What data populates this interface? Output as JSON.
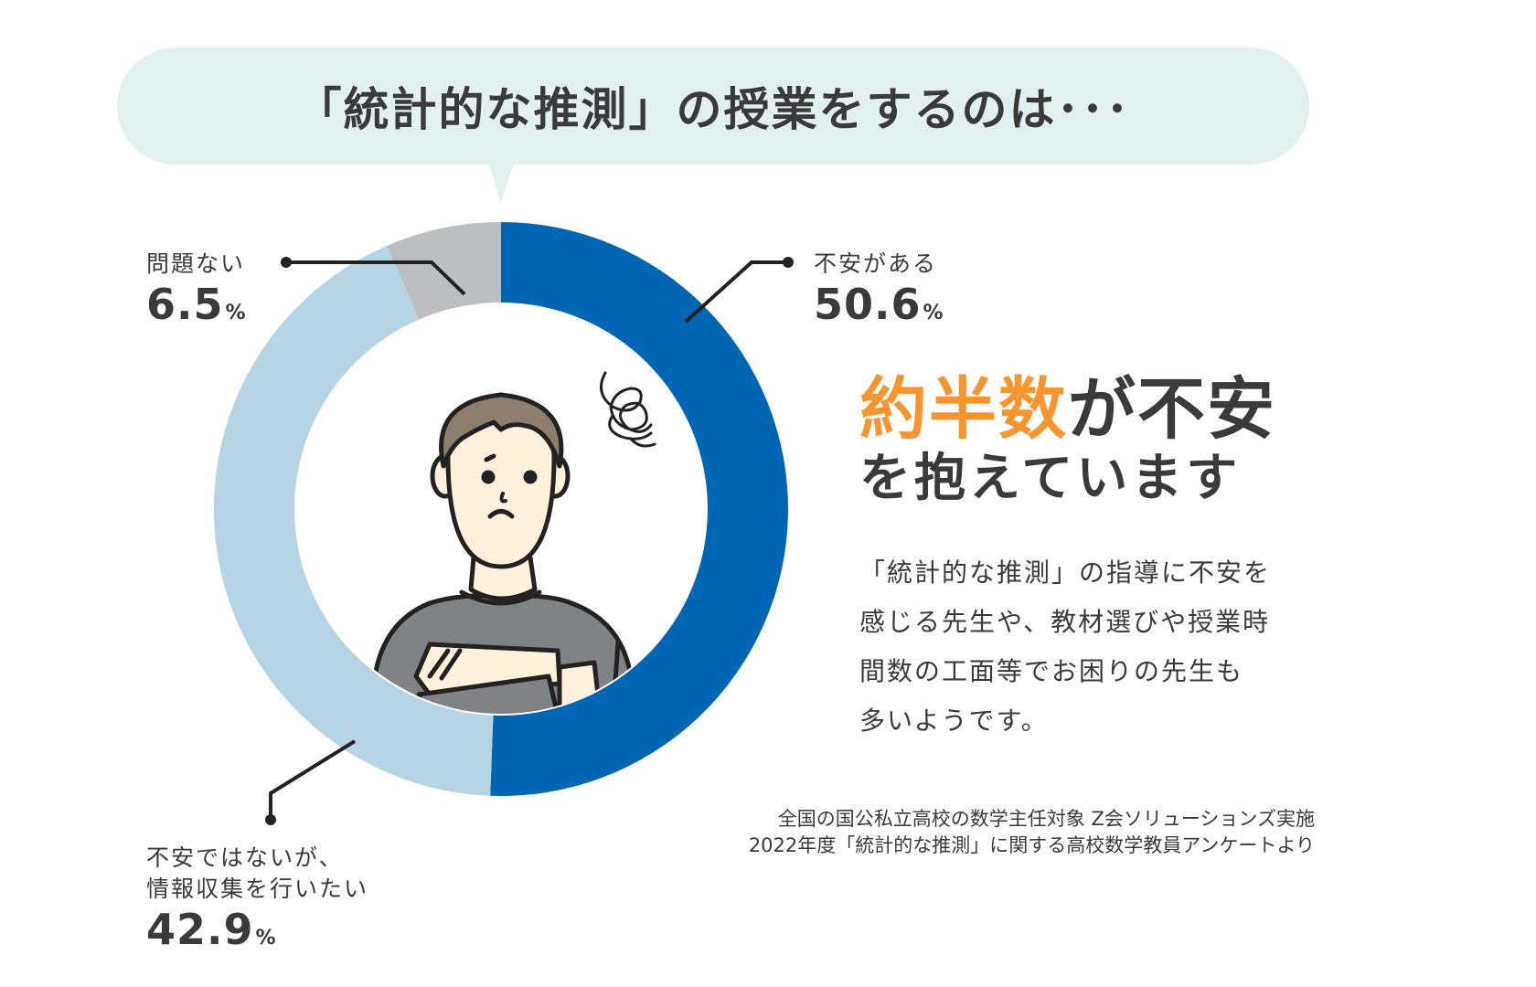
{
  "bubble": {
    "title": "「統計的な推測」の授業をするのは･･･",
    "background_color": "#e2f1f0"
  },
  "chart_data": {
    "type": "pie",
    "variant": "donut",
    "title": "「統計的な推測」の授業をするのは･･･",
    "categories": [
      "不安がある",
      "不安ではないが、情報収集を行いたい",
      "問題ない"
    ],
    "values": [
      50.6,
      42.9,
      6.5
    ],
    "unit": "%",
    "colors": [
      "#0066b3",
      "#b5d4e4",
      "#bdbec0"
    ],
    "start_angle": "top (12 o'clock), clockwise",
    "legend": "inline callout labels"
  },
  "segments": [
    {
      "label": "不安がある",
      "value": "50.6",
      "unit": "%"
    },
    {
      "label_line1": "不安ではないが、",
      "label_line2": "情報収集を行いたい",
      "value": "42.9",
      "unit": "%"
    },
    {
      "label": "問題ない",
      "value": "6.5",
      "unit": "%"
    }
  ],
  "illustration": {
    "description": "worried person with crossed arms and tangled-scribble thought"
  },
  "headline": {
    "part1_orange": "約半数",
    "part2": "が",
    "part3_highlight": "不安",
    "line2": "を抱えています",
    "orange_color": "#f7952f",
    "highlight_color": "#fddf82"
  },
  "description": {
    "lines": [
      "「統計的な推測」の指導に不安を",
      "感じる先生や、教材選びや授業時",
      "間数の工面等でお困りの先生も",
      "多いようです。"
    ]
  },
  "source": {
    "line1": "全国の国公私立高校の数学主任対象 Z会ソリューションズ実施",
    "line2": "2022年度「統計的な推測」に関する高校数学教員アンケートより"
  }
}
